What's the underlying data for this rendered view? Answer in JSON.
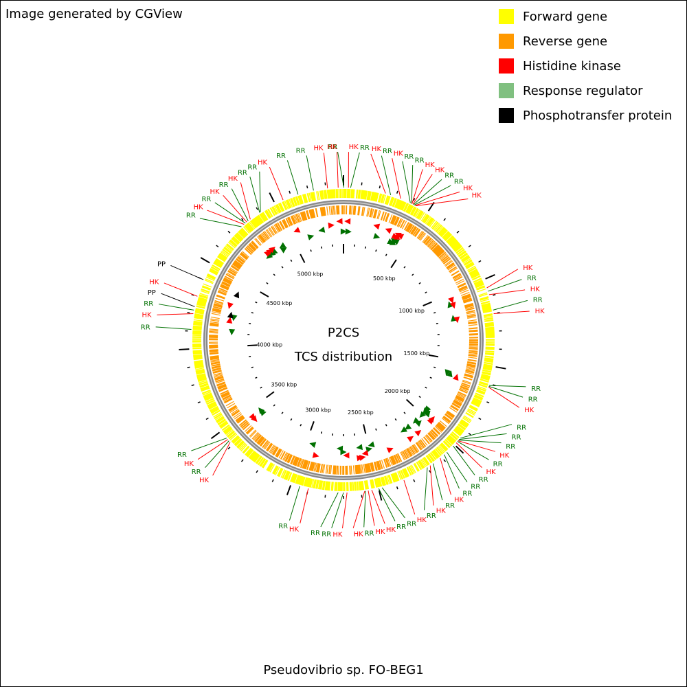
{
  "header": {
    "credit": "Image generated by CGView"
  },
  "footer": {
    "organism": "Pseudovibrio sp. FO-BEG1"
  },
  "center": {
    "line1": "P2CS",
    "line2": "TCS distribution"
  },
  "colors": {
    "forward": "#ffff00",
    "reverse": "#ff9900",
    "hk": "#ff0000",
    "rr": "#80c080",
    "pp": "#000000",
    "rr_label": "#007000",
    "backbone": "#888888"
  },
  "legend": [
    {
      "label": "Forward gene",
      "color": "#ffff00"
    },
    {
      "label": "Reverse gene",
      "color": "#ff9900"
    },
    {
      "label": "Histidine kinase",
      "color": "#ff0000"
    },
    {
      "label": "Response regulator",
      "color": "#80c080"
    },
    {
      "label": "Phosphotransfer protein",
      "color": "#000000"
    }
  ],
  "genome": {
    "length_kbp": 5400,
    "tick_labels": [
      "500 kbp",
      "1000 kbp",
      "1500 kbp",
      "2000 kbp",
      "2500 kbp",
      "3000 kbp",
      "3500 kbp",
      "4000 kbp",
      "4500 kbp",
      "5000 kbp"
    ],
    "tick_positions_kbp": [
      500,
      1000,
      1500,
      2000,
      2500,
      3000,
      3500,
      4000,
      4500,
      5000
    ]
  },
  "features": [
    {
      "type": "RR",
      "label": "RR",
      "pos_kbp": 2
    },
    {
      "type": "HK",
      "label": "HK",
      "pos_kbp": 28
    },
    {
      "type": "RR",
      "label": "RR",
      "pos_kbp": 40
    },
    {
      "type": "HK",
      "label": "HK",
      "pos_kbp": 240
    },
    {
      "type": "RR",
      "label": "RR",
      "pos_kbp": 270
    },
    {
      "type": "HK",
      "label": "HK",
      "pos_kbp": 330
    },
    {
      "type": "RR",
      "label": "RR",
      "pos_kbp": 390
    },
    {
      "type": "RR",
      "label": "RR",
      "pos_kbp": 398
    },
    {
      "type": "HK",
      "label": "HK",
      "pos_kbp": 400
    },
    {
      "type": "HK",
      "label": "HK",
      "pos_kbp": 406
    },
    {
      "type": "RR",
      "label": "RR",
      "pos_kbp": 410
    },
    {
      "type": "RR",
      "label": "RR",
      "pos_kbp": 415
    },
    {
      "type": "HK",
      "label": "HK",
      "pos_kbp": 420
    },
    {
      "type": "HK",
      "label": "HK",
      "pos_kbp": 425
    },
    {
      "type": "HK",
      "label": "HK",
      "pos_kbp": 1050
    },
    {
      "type": "RR",
      "label": "RR",
      "pos_kbp": 1070
    },
    {
      "type": "HK",
      "label": "HK",
      "pos_kbp": 1090
    },
    {
      "type": "RR",
      "label": "RR",
      "pos_kbp": 1180
    },
    {
      "type": "HK",
      "label": "HK",
      "pos_kbp": 1200
    },
    {
      "type": "RR",
      "label": "RR",
      "pos_kbp": 1610
    },
    {
      "type": "RR",
      "label": "RR",
      "pos_kbp": 1615
    },
    {
      "type": "HK",
      "label": "HK",
      "pos_kbp": 1620
    },
    {
      "type": "RR",
      "label": "RR",
      "pos_kbp": 1950
    },
    {
      "type": "RR",
      "label": "RR",
      "pos_kbp": 1960
    },
    {
      "type": "RR",
      "label": "RR",
      "pos_kbp": 1965
    },
    {
      "type": "HK",
      "label": "HK",
      "pos_kbp": 1970
    },
    {
      "type": "RR",
      "label": "RR",
      "pos_kbp": 1975
    },
    {
      "type": "HK",
      "label": "HK",
      "pos_kbp": 1985
    },
    {
      "type": "RR",
      "label": "RR",
      "pos_kbp": 2010
    },
    {
      "type": "RR",
      "label": "RR",
      "pos_kbp": 2060
    },
    {
      "type": "RR",
      "label": "RR",
      "pos_kbp": 2080
    },
    {
      "type": "HK",
      "label": "HK",
      "pos_kbp": 2110
    },
    {
      "type": "RR",
      "label": "RR",
      "pos_kbp": 2160
    },
    {
      "type": "HK",
      "label": "HK",
      "pos_kbp": 2180
    },
    {
      "type": "RR",
      "label": "RR",
      "pos_kbp": 2200
    },
    {
      "type": "HK",
      "label": "HK",
      "pos_kbp": 2350
    },
    {
      "type": "RR",
      "label": "RR",
      "pos_kbp": 2480
    },
    {
      "type": "RR",
      "label": "RR",
      "pos_kbp": 2500
    },
    {
      "type": "HK",
      "label": "HK",
      "pos_kbp": 2540
    },
    {
      "type": "HK",
      "label": "HK",
      "pos_kbp": 2560
    },
    {
      "type": "RR",
      "label": "RR",
      "pos_kbp": 2575
    },
    {
      "type": "HK",
      "label": "HK",
      "pos_kbp": 2580
    },
    {
      "type": "HK",
      "label": "HK",
      "pos_kbp": 2680
    },
    {
      "type": "RR",
      "label": "RR",
      "pos_kbp": 2700
    },
    {
      "type": "RR",
      "label": "RR",
      "pos_kbp": 2730
    },
    {
      "type": "HK",
      "label": "HK",
      "pos_kbp": 2900
    },
    {
      "type": "RR",
      "label": "RR",
      "pos_kbp": 2950
    },
    {
      "type": "HK",
      "label": "HK",
      "pos_kbp": 3420
    },
    {
      "type": "RR",
      "label": "RR",
      "pos_kbp": 3430
    },
    {
      "type": "HK",
      "label": "HK",
      "pos_kbp": 3440
    },
    {
      "type": "RR",
      "label": "RR",
      "pos_kbp": 3450
    },
    {
      "type": "RR",
      "label": "RR",
      "pos_kbp": 4110
    },
    {
      "type": "HK",
      "label": "HK",
      "pos_kbp": 4200
    },
    {
      "type": "RR",
      "label": "RR",
      "pos_kbp": 4220
    },
    {
      "type": "PP",
      "label": "PP",
      "pos_kbp": 4240
    },
    {
      "type": "HK",
      "label": "HK",
      "pos_kbp": 4300
    },
    {
      "type": "PP",
      "label": "PP",
      "pos_kbp": 4400
    },
    {
      "type": "RR",
      "label": "RR",
      "pos_kbp": 4770
    },
    {
      "type": "HK",
      "label": "HK",
      "pos_kbp": 4790
    },
    {
      "type": "RR",
      "label": "RR",
      "pos_kbp": 4800
    },
    {
      "type": "HK",
      "label": "HK",
      "pos_kbp": 4810
    },
    {
      "type": "RR",
      "label": "RR",
      "pos_kbp": 4820
    },
    {
      "type": "HK",
      "label": "HK",
      "pos_kbp": 4835
    },
    {
      "type": "RR",
      "label": "RR",
      "pos_kbp": 4900
    },
    {
      "type": "RR",
      "label": "RR",
      "pos_kbp": 4905
    },
    {
      "type": "HK",
      "label": "HK",
      "pos_kbp": 5050
    },
    {
      "type": "RR",
      "label": "RR",
      "pos_kbp": 5140
    },
    {
      "type": "RR",
      "label": "RR",
      "pos_kbp": 5230
    },
    {
      "type": "HK",
      "label": "HK",
      "pos_kbp": 5310
    },
    {
      "type": "HK",
      "label": "HK",
      "pos_kbp": 5370
    }
  ]
}
